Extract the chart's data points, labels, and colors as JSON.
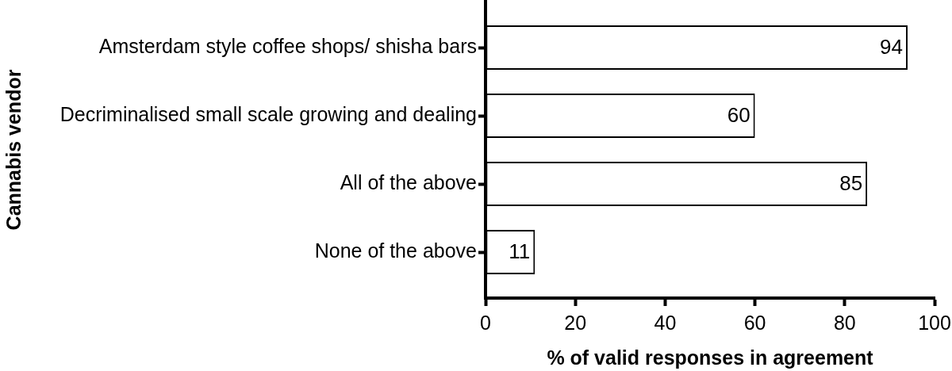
{
  "chart_data": {
    "type": "bar",
    "orientation": "horizontal",
    "xlabel": "% of valid responses in agreement",
    "ylabel": "Cannabis vendor",
    "categories": [
      "Amsterdam style coffee shops/ shisha bars",
      "Decriminalised small scale growing and dealing",
      "All of the above",
      "None of the above"
    ],
    "values": [
      94,
      60,
      85,
      11
    ],
    "color": "#ffffff",
    "xlim": [
      0,
      100
    ],
    "xticks": [
      0,
      20,
      40,
      60,
      80,
      100
    ],
    "grid": false,
    "legend": false,
    "data_labels": true
  }
}
